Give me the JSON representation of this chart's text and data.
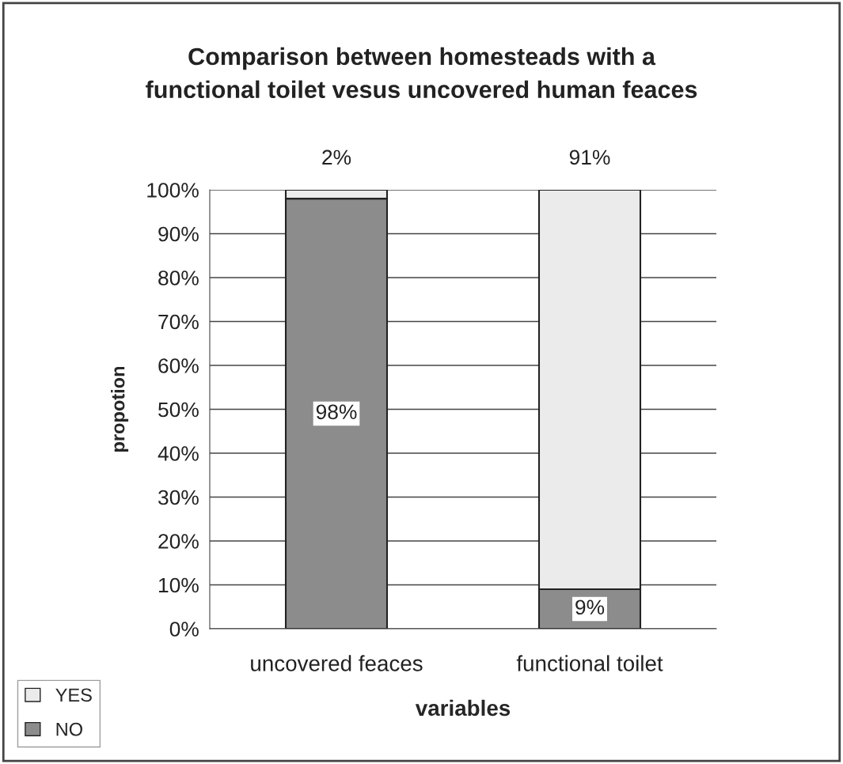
{
  "chart_data": {
    "type": "bar",
    "title": "Comparison between homesteads with a\nfunctional toilet vesus uncovered human feaces",
    "xlabel": "variables",
    "ylabel": "propotion",
    "categories": [
      "uncovered feaces",
      "functional toilet"
    ],
    "stacked": true,
    "series": [
      {
        "name": "NO",
        "color": "#8c8c8c",
        "values": [
          98,
          9
        ],
        "value_labels": [
          "98%",
          "9%"
        ]
      },
      {
        "name": "YES",
        "color": "#ebebeb",
        "values": [
          2,
          91
        ],
        "value_labels": [
          "2%",
          "91%"
        ]
      }
    ],
    "ylim": [
      0,
      100
    ],
    "yticks": [
      {
        "value": 0,
        "label": "0%"
      },
      {
        "value": 10,
        "label": "10%"
      },
      {
        "value": 20,
        "label": "20%"
      },
      {
        "value": 30,
        "label": "30%"
      },
      {
        "value": 40,
        "label": "40%"
      },
      {
        "value": 50,
        "label": "50%"
      },
      {
        "value": 60,
        "label": "60%"
      },
      {
        "value": 70,
        "label": "70%"
      },
      {
        "value": 80,
        "label": "80%"
      },
      {
        "value": 90,
        "label": "90%"
      },
      {
        "value": 100,
        "label": "100%"
      }
    ],
    "grid": "y",
    "legend": "bottom left"
  }
}
